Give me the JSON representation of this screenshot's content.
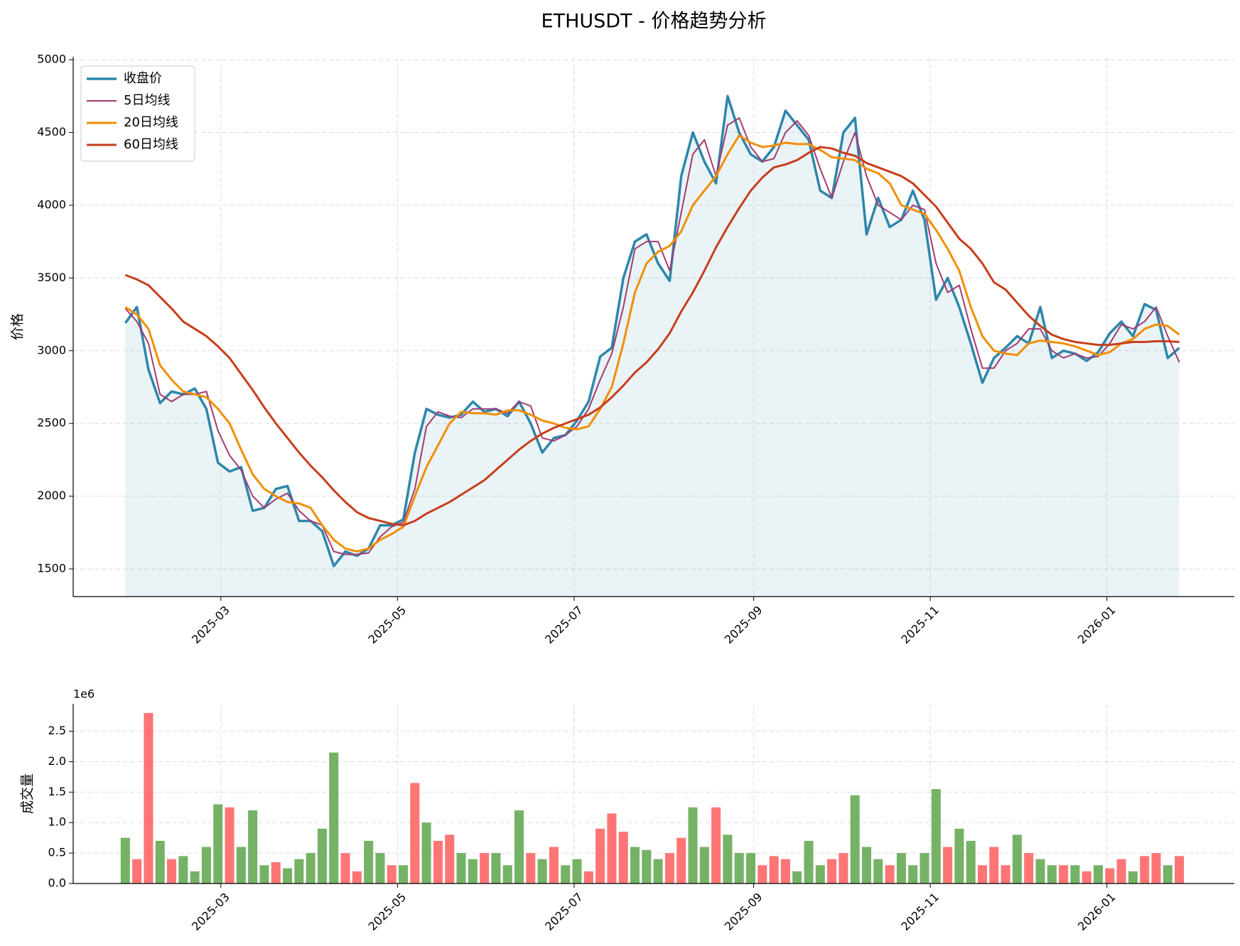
{
  "chart_data": [
    {
      "type": "line",
      "title": "ETHUSDT - 价格趋势分析",
      "ylabel": "价格",
      "legend": "upper left",
      "grid": true,
      "fill_color": "#2e86ab",
      "x": [
        "2025-01-27",
        "2025-01-31",
        "2025-02-04",
        "2025-02-08",
        "2025-02-12",
        "2025-02-16",
        "2025-02-20",
        "2025-02-24",
        "2025-02-28",
        "2025-03-04",
        "2025-03-08",
        "2025-03-12",
        "2025-03-16",
        "2025-03-20",
        "2025-03-24",
        "2025-03-28",
        "2025-04-01",
        "2025-04-05",
        "2025-04-09",
        "2025-04-13",
        "2025-04-17",
        "2025-04-21",
        "2025-04-25",
        "2025-04-29",
        "2025-05-03",
        "2025-05-07",
        "2025-05-11",
        "2025-05-15",
        "2025-05-19",
        "2025-05-23",
        "2025-05-27",
        "2025-05-31",
        "2025-06-04",
        "2025-06-08",
        "2025-06-12",
        "2025-06-16",
        "2025-06-20",
        "2025-06-24",
        "2025-06-28",
        "2025-07-02",
        "2025-07-06",
        "2025-07-10",
        "2025-07-14",
        "2025-07-18",
        "2025-07-22",
        "2025-07-26",
        "2025-07-30",
        "2025-08-03",
        "2025-08-07",
        "2025-08-11",
        "2025-08-15",
        "2025-08-19",
        "2025-08-23",
        "2025-08-27",
        "2025-08-31",
        "2025-09-04",
        "2025-09-08",
        "2025-09-12",
        "2025-09-16",
        "2025-09-20",
        "2025-09-24",
        "2025-09-28",
        "2025-10-02",
        "2025-10-06",
        "2025-10-10",
        "2025-10-14",
        "2025-10-18",
        "2025-10-22",
        "2025-10-26",
        "2025-10-30",
        "2025-11-03",
        "2025-11-07",
        "2025-11-11",
        "2025-11-15",
        "2025-11-19",
        "2025-11-23",
        "2025-11-27",
        "2025-12-01",
        "2025-12-05",
        "2025-12-09",
        "2025-12-13",
        "2025-12-17",
        "2025-12-21",
        "2025-12-25",
        "2025-12-29",
        "2026-01-02",
        "2026-01-06",
        "2026-01-10",
        "2026-01-14",
        "2026-01-18",
        "2026-01-22",
        "2026-01-26"
      ],
      "series": [
        {
          "name": "收盘价",
          "color": "#2e86ab",
          "width": 3.5,
          "values": [
            3190,
            3300,
            2870,
            2640,
            2720,
            2700,
            2740,
            2600,
            2230,
            2170,
            2200,
            1900,
            1920,
            2050,
            2070,
            1830,
            1830,
            1760,
            1520,
            1620,
            1590,
            1640,
            1800,
            1800,
            1840,
            2300,
            2600,
            2560,
            2540,
            2560,
            2650,
            2580,
            2600,
            2550,
            2650,
            2500,
            2300,
            2400,
            2420,
            2520,
            2650,
            2960,
            3020,
            3500,
            3750,
            3800,
            3600,
            3480,
            4200,
            4500,
            4300,
            4150,
            4750,
            4500,
            4350,
            4300,
            4400,
            4650,
            4550,
            4450,
            4100,
            4050,
            4500,
            4600,
            3800,
            4050,
            3850,
            3900,
            4100,
            3900,
            3350,
            3500,
            3300,
            3050,
            2780,
            2950,
            3020,
            3100,
            3050,
            3300,
            2950,
            3000,
            2980,
            2930,
            2990,
            3120,
            3200,
            3100,
            3320,
            3280,
            2950,
            3020
          ]
        },
        {
          "name": "5日均线",
          "color": "#a23b72",
          "width": 2,
          "values": [
            3290,
            3200,
            3050,
            2700,
            2650,
            2700,
            2700,
            2720,
            2450,
            2280,
            2180,
            2000,
            1920,
            1980,
            2020,
            1900,
            1830,
            1800,
            1620,
            1600,
            1600,
            1610,
            1720,
            1790,
            1820,
            2050,
            2480,
            2580,
            2550,
            2540,
            2600,
            2600,
            2600,
            2570,
            2650,
            2620,
            2400,
            2380,
            2420,
            2480,
            2600,
            2800,
            2980,
            3300,
            3700,
            3750,
            3750,
            3550,
            3950,
            4350,
            4450,
            4200,
            4550,
            4600,
            4400,
            4300,
            4320,
            4500,
            4580,
            4480,
            4250,
            4050,
            4300,
            4500,
            4200,
            4000,
            3950,
            3900,
            4000,
            3970,
            3600,
            3400,
            3450,
            3150,
            2880,
            2880,
            3000,
            3050,
            3150,
            3150,
            3000,
            2950,
            2980,
            2950,
            2960,
            3050,
            3180,
            3150,
            3200,
            3300,
            3100,
            2920
          ]
        },
        {
          "name": "20日均线",
          "color": "#f18f01",
          "width": 3,
          "values": [
            3300,
            3250,
            3150,
            2900,
            2800,
            2720,
            2700,
            2680,
            2600,
            2500,
            2320,
            2150,
            2050,
            2000,
            1960,
            1950,
            1920,
            1800,
            1700,
            1640,
            1620,
            1640,
            1700,
            1740,
            1790,
            2000,
            2200,
            2350,
            2500,
            2580,
            2570,
            2570,
            2560,
            2590,
            2590,
            2560,
            2520,
            2500,
            2470,
            2460,
            2480,
            2600,
            2750,
            3050,
            3400,
            3600,
            3680,
            3720,
            3820,
            4000,
            4100,
            4200,
            4350,
            4480,
            4430,
            4400,
            4410,
            4430,
            4420,
            4420,
            4380,
            4330,
            4320,
            4310,
            4250,
            4220,
            4150,
            4000,
            3970,
            3940,
            3830,
            3700,
            3550,
            3300,
            3100,
            3000,
            2980,
            2970,
            3050,
            3070,
            3060,
            3050,
            3030,
            3000,
            2970,
            2990,
            3050,
            3080,
            3150,
            3180,
            3170,
            3110
          ]
        },
        {
          "name": "60日均线",
          "color": "#c73e1d",
          "width": 3,
          "values": [
            3520,
            3490,
            3450,
            3370,
            3290,
            3200,
            3150,
            3100,
            3030,
            2950,
            2840,
            2730,
            2610,
            2500,
            2400,
            2300,
            2210,
            2130,
            2040,
            1960,
            1890,
            1850,
            1830,
            1810,
            1800,
            1830,
            1880,
            1920,
            1960,
            2010,
            2060,
            2110,
            2180,
            2250,
            2320,
            2380,
            2430,
            2470,
            2500,
            2530,
            2560,
            2610,
            2680,
            2760,
            2850,
            2920,
            3010,
            3120,
            3270,
            3400,
            3550,
            3710,
            3850,
            3980,
            4100,
            4190,
            4260,
            4280,
            4310,
            4360,
            4400,
            4390,
            4360,
            4340,
            4290,
            4260,
            4230,
            4200,
            4150,
            4070,
            3990,
            3880,
            3770,
            3700,
            3600,
            3470,
            3420,
            3330,
            3240,
            3170,
            3110,
            3080,
            3060,
            3050,
            3040,
            3040,
            3050,
            3060,
            3060,
            3065,
            3065,
            3060
          ]
        }
      ],
      "xlim": [
        "2025-01-09",
        "2026-02-14"
      ],
      "xticks": [
        {
          "value": "2025-03-01",
          "label": "2025-03"
        },
        {
          "value": "2025-05-01",
          "label": "2025-05"
        },
        {
          "value": "2025-07-01",
          "label": "2025-07"
        },
        {
          "value": "2025-09-01",
          "label": "2025-09"
        },
        {
          "value": "2025-11-01",
          "label": "2025-11"
        },
        {
          "value": "2026-01-01",
          "label": "2026-01"
        }
      ],
      "ylim": [
        1310,
        5020
      ],
      "yticks": [
        1500,
        2000,
        2500,
        3000,
        3500,
        4000,
        4500,
        5000
      ]
    },
    {
      "type": "bar",
      "ylabel": "成交量",
      "offset_label": "1e6",
      "grid": true,
      "x": [
        "2025-01-27",
        "2025-01-31",
        "2025-02-04",
        "2025-02-08",
        "2025-02-12",
        "2025-02-16",
        "2025-02-20",
        "2025-02-24",
        "2025-02-28",
        "2025-03-04",
        "2025-03-08",
        "2025-03-12",
        "2025-03-16",
        "2025-03-20",
        "2025-03-24",
        "2025-03-28",
        "2025-04-01",
        "2025-04-05",
        "2025-04-09",
        "2025-04-13",
        "2025-04-17",
        "2025-04-21",
        "2025-04-25",
        "2025-04-29",
        "2025-05-03",
        "2025-05-07",
        "2025-05-11",
        "2025-05-15",
        "2025-05-19",
        "2025-05-23",
        "2025-05-27",
        "2025-05-31",
        "2025-06-04",
        "2025-06-08",
        "2025-06-12",
        "2025-06-16",
        "2025-06-20",
        "2025-06-24",
        "2025-06-28",
        "2025-07-02",
        "2025-07-06",
        "2025-07-10",
        "2025-07-14",
        "2025-07-18",
        "2025-07-22",
        "2025-07-26",
        "2025-07-30",
        "2025-08-03",
        "2025-08-07",
        "2025-08-11",
        "2025-08-15",
        "2025-08-19",
        "2025-08-23",
        "2025-08-27",
        "2025-08-31",
        "2025-09-04",
        "2025-09-08",
        "2025-09-12",
        "2025-09-16",
        "2025-09-20",
        "2025-09-24",
        "2025-09-28",
        "2025-10-02",
        "2025-10-06",
        "2025-10-10",
        "2025-10-14",
        "2025-10-18",
        "2025-10-22",
        "2025-10-26",
        "2025-10-30",
        "2025-11-03",
        "2025-11-07",
        "2025-11-11",
        "2025-11-15",
        "2025-11-19",
        "2025-11-23",
        "2025-11-27",
        "2025-12-01",
        "2025-12-05",
        "2025-12-09",
        "2025-12-13",
        "2025-12-17",
        "2025-12-21",
        "2025-12-25",
        "2025-12-29",
        "2026-01-02",
        "2026-01-06",
        "2026-01-10",
        "2026-01-14",
        "2026-01-18",
        "2026-01-22",
        "2026-01-26"
      ],
      "values": [
        0.75,
        0.4,
        2.8,
        0.7,
        0.4,
        0.45,
        0.2,
        0.6,
        1.3,
        1.25,
        0.6,
        1.2,
        0.3,
        0.35,
        0.25,
        0.4,
        0.5,
        0.9,
        2.15,
        0.5,
        0.2,
        0.7,
        0.5,
        0.3,
        0.3,
        1.65,
        1.0,
        0.7,
        0.8,
        0.5,
        0.4,
        0.5,
        0.5,
        0.3,
        1.2,
        0.5,
        0.4,
        0.6,
        0.3,
        0.4,
        0.2,
        0.9,
        1.15,
        0.85,
        0.6,
        0.55,
        0.4,
        0.5,
        0.75,
        1.25,
        0.6,
        1.25,
        0.8,
        0.5,
        0.5,
        0.3,
        0.45,
        0.4,
        0.2,
        0.7,
        0.3,
        0.4,
        0.5,
        1.45,
        0.6,
        0.4,
        0.3,
        0.5,
        0.3,
        0.5,
        1.55,
        0.6,
        0.9,
        0.7,
        0.3,
        0.6,
        0.3,
        0.8,
        0.5,
        0.4,
        0.3,
        0.3,
        0.3,
        0.2,
        0.3,
        0.25,
        0.4,
        0.2,
        0.45,
        0.5,
        0.3,
        0.45
      ],
      "colors": [
        "#66aa55",
        "#ff6666",
        "#ff6666",
        "#66aa55",
        "#ff6666",
        "#66aa55",
        "#66aa55",
        "#66aa55",
        "#66aa55",
        "#ff6666",
        "#66aa55",
        "#66aa55",
        "#66aa55",
        "#ff6666",
        "#66aa55",
        "#66aa55",
        "#66aa55",
        "#66aa55",
        "#66aa55",
        "#ff6666",
        "#ff6666",
        "#66aa55",
        "#66aa55",
        "#ff6666",
        "#66aa55",
        "#ff6666",
        "#66aa55",
        "#ff6666",
        "#ff6666",
        "#66aa55",
        "#66aa55",
        "#ff6666",
        "#66aa55",
        "#66aa55",
        "#66aa55",
        "#ff6666",
        "#66aa55",
        "#ff6666",
        "#66aa55",
        "#66aa55",
        "#ff6666",
        "#ff6666",
        "#ff6666",
        "#ff6666",
        "#66aa55",
        "#66aa55",
        "#66aa55",
        "#ff6666",
        "#ff6666",
        "#66aa55",
        "#66aa55",
        "#ff6666",
        "#66aa55",
        "#66aa55",
        "#66aa55",
        "#ff6666",
        "#ff6666",
        "#ff6666",
        "#66aa55",
        "#66aa55",
        "#66aa55",
        "#ff6666",
        "#ff6666",
        "#66aa55",
        "#66aa55",
        "#66aa55",
        "#ff6666",
        "#66aa55",
        "#66aa55",
        "#66aa55",
        "#66aa55",
        "#ff6666",
        "#66aa55",
        "#66aa55",
        "#ff6666",
        "#ff6666",
        "#ff6666",
        "#66aa55",
        "#ff6666",
        "#66aa55",
        "#66aa55",
        "#ff6666",
        "#66aa55",
        "#ff6666",
        "#66aa55",
        "#ff6666",
        "#ff6666",
        "#66aa55",
        "#ff6666",
        "#ff6666",
        "#66aa55",
        "#ff6666"
      ],
      "xlim": [
        "2025-01-09",
        "2026-02-14"
      ],
      "xticks": [
        {
          "value": "2025-03-01",
          "label": "2025-03"
        },
        {
          "value": "2025-05-01",
          "label": "2025-05"
        },
        {
          "value": "2025-07-01",
          "label": "2025-07"
        },
        {
          "value": "2025-09-01",
          "label": "2025-09"
        },
        {
          "value": "2025-11-01",
          "label": "2025-11"
        },
        {
          "value": "2026-01-01",
          "label": "2026-01"
        }
      ],
      "ylim": [
        0,
        2.95
      ],
      "yticks": [
        {
          "value": 0,
          "label": "0.0"
        },
        0.5,
        {
          "value": 1,
          "label": "1.0"
        },
        1.5,
        {
          "value": 2,
          "label": "2.0"
        },
        2.5
      ]
    }
  ]
}
